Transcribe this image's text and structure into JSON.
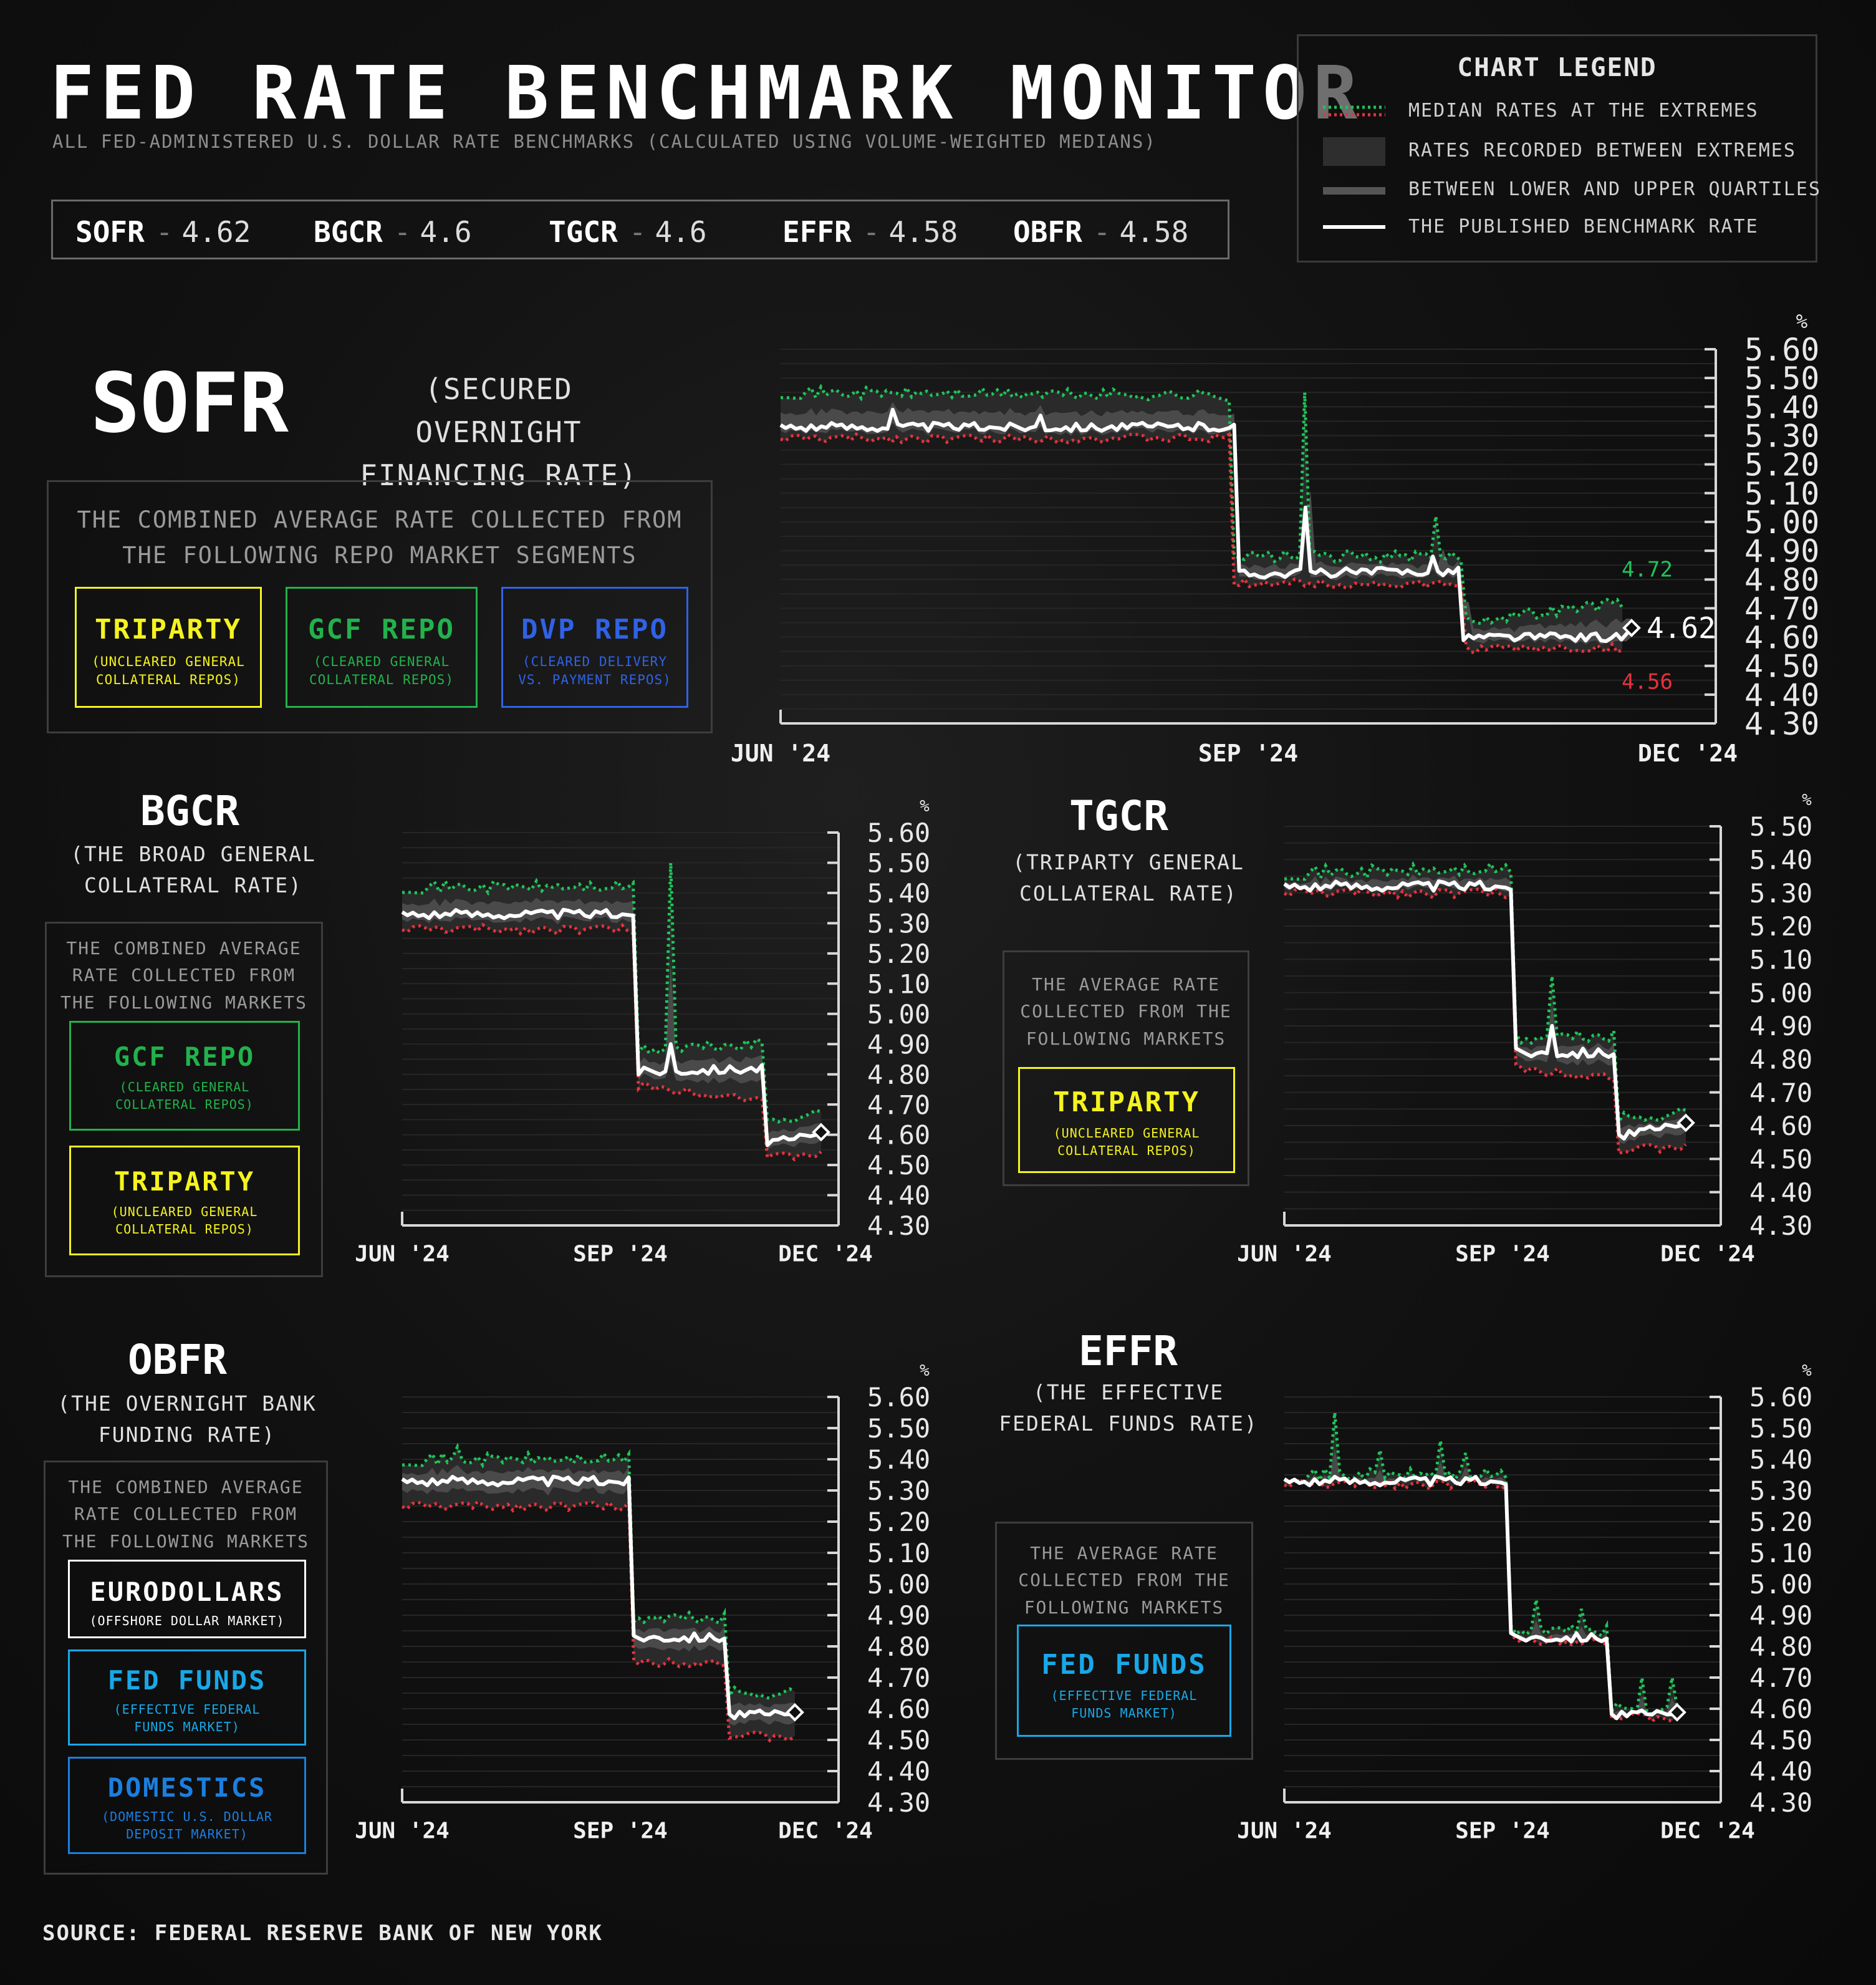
{
  "header": {
    "title": "FED RATE BENCHMARK MONITOR",
    "subtitle": "ALL FED-ADMINISTERED U.S. DOLLAR RATE BENCHMARKS (CALCULATED USING VOLUME-WEIGHTED MEDIANS)"
  },
  "ticker": [
    {
      "code": "SOFR",
      "value": "4.62"
    },
    {
      "code": "BGCR",
      "value": "4.6"
    },
    {
      "code": "TGCR",
      "value": "4.6"
    },
    {
      "code": "EFFR",
      "value": "4.58"
    },
    {
      "code": "OBFR",
      "value": "4.58"
    }
  ],
  "legend": {
    "title": "CHART LEGEND",
    "items": [
      {
        "label": "MEDIAN RATES AT THE EXTREMES",
        "swatch": "dotted-green-red"
      },
      {
        "label": "RATES RECORDED BETWEEN EXTREMES",
        "swatch": "dark-band"
      },
      {
        "label": "BETWEEN LOWER AND UPPER QUARTILES",
        "swatch": "grey-bar"
      },
      {
        "label": "THE PUBLISHED BENCHMARK RATE",
        "swatch": "white-line"
      }
    ]
  },
  "colors": {
    "upper": "#1fc45a",
    "lower": "#e8323c",
    "line": "#ffffff",
    "band": "#3a3a3a",
    "tripartyYellow": "#f5f31f",
    "gcfGreen": "#22b24c",
    "dvpBlue": "#2f62e6",
    "fedBlue": "#18a8e8",
    "domBlue": "#1b7fe0"
  },
  "sections": {
    "sofr": {
      "name": "SOFR",
      "full": [
        "(SECURED OVERNIGHT",
        "FINANCING RATE)"
      ],
      "desc": [
        "THE COMBINED AVERAGE RATE COLLECTED FROM",
        "THE FOLLOWING REPO MARKET SEGMENTS"
      ],
      "segments": [
        {
          "name": "TRIPARTY",
          "desc": [
            "(UNCLEARED GENERAL",
            "COLLATERAL REPOS)"
          ],
          "color": "#f5f31f"
        },
        {
          "name": "GCF REPO",
          "desc": [
            "(CLEARED GENERAL",
            "COLLATERAL REPOS)"
          ],
          "color": "#22b24c"
        },
        {
          "name": "DVP REPO",
          "desc": [
            "(CLEARED DELIVERY",
            "VS. PAYMENT REPOS)"
          ],
          "color": "#2f62e6"
        }
      ]
    },
    "bgcr": {
      "name": "BGCR",
      "full": [
        "(THE BROAD GENERAL",
        "COLLATERAL RATE)"
      ],
      "desc": [
        "THE COMBINED AVERAGE",
        "RATE COLLECTED FROM",
        "THE FOLLOWING MARKETS"
      ],
      "segments": [
        {
          "name": "GCF REPO",
          "desc": [
            "(CLEARED GENERAL",
            "COLLATERAL REPOS)"
          ],
          "color": "#22b24c"
        },
        {
          "name": "TRIPARTY",
          "desc": [
            "(UNCLEARED GENERAL",
            "COLLATERAL REPOS)"
          ],
          "color": "#f5f31f"
        }
      ]
    },
    "tgcr": {
      "name": "TGCR",
      "full": [
        "(TRIPARTY GENERAL",
        "COLLATERAL RATE)"
      ],
      "desc": [
        "THE AVERAGE RATE",
        "COLLECTED FROM THE",
        "FOLLOWING MARKETS"
      ],
      "segments": [
        {
          "name": "TRIPARTY",
          "desc": [
            "(UNCLEARED GENERAL",
            "COLLATERAL REPOS)"
          ],
          "color": "#f5f31f"
        }
      ]
    },
    "obfr": {
      "name": "OBFR",
      "full": [
        "(THE OVERNIGHT BANK",
        "FUNDING RATE)"
      ],
      "desc": [
        "THE COMBINED AVERAGE",
        "RATE COLLECTED FROM",
        "THE FOLLOWING MARKETS"
      ],
      "segments": [
        {
          "name": "EURODOLLARS",
          "desc": [
            "(OFFSHORE DOLLAR MARKET)"
          ],
          "color": "#ffffff"
        },
        {
          "name": "FED FUNDS",
          "desc": [
            "(EFFECTIVE FEDERAL",
            "FUNDS MARKET)"
          ],
          "color": "#18a8e8"
        },
        {
          "name": "DOMESTICS",
          "desc": [
            "(DOMESTIC U.S. DOLLAR",
            "DEPOSIT MARKET)"
          ],
          "color": "#1b7fe0"
        }
      ]
    },
    "effr": {
      "name": "EFFR",
      "full": [
        "(THE EFFECTIVE",
        "FEDERAL FUNDS RATE)"
      ],
      "desc": [
        "THE AVERAGE RATE",
        "COLLECTED FROM THE",
        "FOLLOWING MARKETS"
      ],
      "segments": [
        {
          "name": "FED FUNDS",
          "desc": [
            "(EFFECTIVE FEDERAL",
            "FUNDS MARKET)"
          ],
          "color": "#18a8e8"
        }
      ]
    }
  },
  "chart_data": [
    {
      "id": "sofr",
      "type": "line",
      "unit": "%",
      "ylim": [
        4.3,
        5.6
      ],
      "x_labels": [
        "JUN '24",
        "SEP '24",
        "DEC '24"
      ],
      "y_ticks": [
        "5.60",
        "5.50",
        "5.40",
        "5.30",
        "5.20",
        "5.10",
        "5.00",
        "4.90",
        "4.80",
        "4.70",
        "4.60",
        "4.50",
        "4.40",
        "4.30"
      ],
      "annotations": {
        "upper_last": "4.72",
        "rate_last": "4.62",
        "lower_last": "4.56"
      },
      "series": [
        {
          "role": "published_rate",
          "segments": [
            [
              0.0,
              5.33
            ],
            [
              0.47,
              5.33
            ],
            [
              0.5,
              4.82
            ],
            [
              0.72,
              4.83
            ],
            [
              0.74,
              4.6
            ],
            [
              0.9,
              4.6
            ],
            [
              0.91,
              4.62
            ]
          ],
          "spikes": [
            [
              0.12,
              5.39
            ],
            [
              0.28,
              5.37
            ],
            [
              0.56,
              5.05
            ],
            [
              0.7,
              4.88
            ]
          ]
        },
        {
          "role": "upper_extreme",
          "segments": [
            [
              0.0,
              5.45
            ],
            [
              0.47,
              5.44
            ],
            [
              0.5,
              4.88
            ],
            [
              0.72,
              4.88
            ],
            [
              0.74,
              4.66
            ],
            [
              0.9,
              4.72
            ]
          ],
          "spikes": [
            [
              0.56,
              5.45
            ],
            [
              0.7,
              5.02
            ]
          ]
        },
        {
          "role": "lower_extreme",
          "segments": [
            [
              0.0,
              5.29
            ],
            [
              0.47,
              5.29
            ],
            [
              0.5,
              4.79
            ],
            [
              0.72,
              4.78
            ],
            [
              0.74,
              4.56
            ],
            [
              0.9,
              4.56
            ]
          ],
          "spikes": []
        }
      ]
    },
    {
      "id": "bgcr",
      "type": "line",
      "unit": "%",
      "ylim": [
        4.3,
        5.6
      ],
      "x_labels": [
        "JUN '24",
        "SEP '24",
        "DEC '24"
      ],
      "y_ticks": [
        "5.60",
        "5.50",
        "5.40",
        "5.30",
        "5.20",
        "5.10",
        "5.00",
        "4.90",
        "4.80",
        "4.70",
        "4.60",
        "4.50",
        "4.40",
        "4.30"
      ],
      "series": [
        {
          "role": "published_rate",
          "segments": [
            [
              0.0,
              5.33
            ],
            [
              0.53,
              5.33
            ],
            [
              0.55,
              4.81
            ],
            [
              0.82,
              4.82
            ],
            [
              0.84,
              4.57
            ],
            [
              0.96,
              4.6
            ]
          ],
          "spikes": [
            [
              0.62,
              4.9
            ]
          ]
        },
        {
          "role": "upper_extreme",
          "segments": [
            [
              0.0,
              5.42
            ],
            [
              0.53,
              5.42
            ],
            [
              0.55,
              4.88
            ],
            [
              0.82,
              4.9
            ],
            [
              0.84,
              4.65
            ],
            [
              0.96,
              4.67
            ]
          ],
          "spikes": [
            [
              0.62,
              5.5
            ]
          ]
        },
        {
          "role": "lower_extreme",
          "segments": [
            [
              0.0,
              5.28
            ],
            [
              0.53,
              5.28
            ],
            [
              0.55,
              4.76
            ],
            [
              0.82,
              4.72
            ],
            [
              0.84,
              4.52
            ],
            [
              0.96,
              4.54
            ]
          ],
          "spikes": []
        }
      ]
    },
    {
      "id": "tgcr",
      "type": "line",
      "unit": "%",
      "ylim": [
        4.3,
        5.5
      ],
      "x_labels": [
        "JUN '24",
        "SEP '24",
        "DEC '24"
      ],
      "y_ticks": [
        "5.50",
        "5.40",
        "5.30",
        "5.20",
        "5.10",
        "5.00",
        "4.90",
        "4.80",
        "4.70",
        "4.60",
        "4.50",
        "4.40",
        "4.30"
      ],
      "series": [
        {
          "role": "published_rate",
          "segments": [
            [
              0.0,
              5.32
            ],
            [
              0.52,
              5.32
            ],
            [
              0.54,
              4.82
            ],
            [
              0.75,
              4.82
            ],
            [
              0.77,
              4.57
            ],
            [
              0.92,
              4.6
            ]
          ],
          "spikes": [
            [
              0.61,
              4.9
            ]
          ]
        },
        {
          "role": "upper_extreme",
          "segments": [
            [
              0.0,
              5.36
            ],
            [
              0.52,
              5.37
            ],
            [
              0.54,
              4.86
            ],
            [
              0.75,
              4.87
            ],
            [
              0.77,
              4.62
            ],
            [
              0.92,
              4.64
            ]
          ],
          "spikes": [
            [
              0.61,
              5.05
            ]
          ]
        },
        {
          "role": "lower_extreme",
          "segments": [
            [
              0.0,
              5.3
            ],
            [
              0.52,
              5.3
            ],
            [
              0.54,
              4.77
            ],
            [
              0.75,
              4.75
            ],
            [
              0.77,
              4.52
            ],
            [
              0.92,
              4.54
            ]
          ],
          "spikes": []
        }
      ]
    },
    {
      "id": "obfr",
      "type": "line",
      "unit": "%",
      "ylim": [
        4.3,
        5.6
      ],
      "x_labels": [
        "JUN '24",
        "SEP '24",
        "DEC '24"
      ],
      "y_ticks": [
        "5.60",
        "5.50",
        "5.40",
        "5.30",
        "5.20",
        "5.10",
        "5.00",
        "4.90",
        "4.80",
        "4.70",
        "4.60",
        "4.50",
        "4.40",
        "4.30"
      ],
      "series": [
        {
          "role": "published_rate",
          "segments": [
            [
              0.0,
              5.33
            ],
            [
              0.51,
              5.33
            ],
            [
              0.53,
              4.83
            ],
            [
              0.74,
              4.83
            ],
            [
              0.76,
              4.58
            ],
            [
              0.9,
              4.58
            ]
          ],
          "spikes": []
        },
        {
          "role": "upper_extreme",
          "segments": [
            [
              0.0,
              5.4
            ],
            [
              0.51,
              5.4
            ],
            [
              0.53,
              4.89
            ],
            [
              0.74,
              4.89
            ],
            [
              0.76,
              4.65
            ],
            [
              0.9,
              4.65
            ]
          ],
          "spikes": [
            [
              0.13,
              5.44
            ]
          ]
        },
        {
          "role": "lower_extreme",
          "segments": [
            [
              0.0,
              5.25
            ],
            [
              0.51,
              5.25
            ],
            [
              0.53,
              4.75
            ],
            [
              0.74,
              4.75
            ],
            [
              0.76,
              4.51
            ],
            [
              0.9,
              4.51
            ]
          ],
          "spikes": []
        }
      ]
    },
    {
      "id": "effr",
      "type": "line",
      "unit": "%",
      "ylim": [
        4.3,
        5.6
      ],
      "x_labels": [
        "JUN '24",
        "SEP '24",
        "DEC '24"
      ],
      "y_ticks": [
        "5.60",
        "5.50",
        "5.40",
        "5.30",
        "5.20",
        "5.10",
        "5.00",
        "4.90",
        "4.80",
        "4.70",
        "4.60",
        "4.50",
        "4.40",
        "4.30"
      ],
      "series": [
        {
          "role": "published_rate",
          "segments": [
            [
              0.0,
              5.33
            ],
            [
              0.5,
              5.33
            ],
            [
              0.52,
              4.83
            ],
            [
              0.73,
              4.83
            ],
            [
              0.75,
              4.58
            ],
            [
              0.9,
              4.58
            ]
          ],
          "spikes": []
        },
        {
          "role": "upper_extreme",
          "segments": [
            [
              0.0,
              5.35
            ],
            [
              0.5,
              5.35
            ],
            [
              0.52,
              4.85
            ],
            [
              0.73,
              4.85
            ],
            [
              0.75,
              4.6
            ],
            [
              0.9,
              4.6
            ]
          ],
          "spikes": [
            [
              0.12,
              5.55
            ],
            [
              0.22,
              5.43
            ],
            [
              0.36,
              5.46
            ],
            [
              0.41,
              5.42
            ],
            [
              0.58,
              4.95
            ],
            [
              0.68,
              4.92
            ],
            [
              0.82,
              4.7
            ],
            [
              0.89,
              4.7
            ]
          ]
        },
        {
          "role": "lower_extreme",
          "segments": [
            [
              0.0,
              5.32
            ],
            [
              0.5,
              5.32
            ],
            [
              0.52,
              4.82
            ],
            [
              0.73,
              4.82
            ],
            [
              0.75,
              4.57
            ],
            [
              0.9,
              4.57
            ]
          ],
          "spikes": []
        }
      ]
    }
  ],
  "source": "SOURCE: FEDERAL RESERVE BANK OF NEW YORK"
}
